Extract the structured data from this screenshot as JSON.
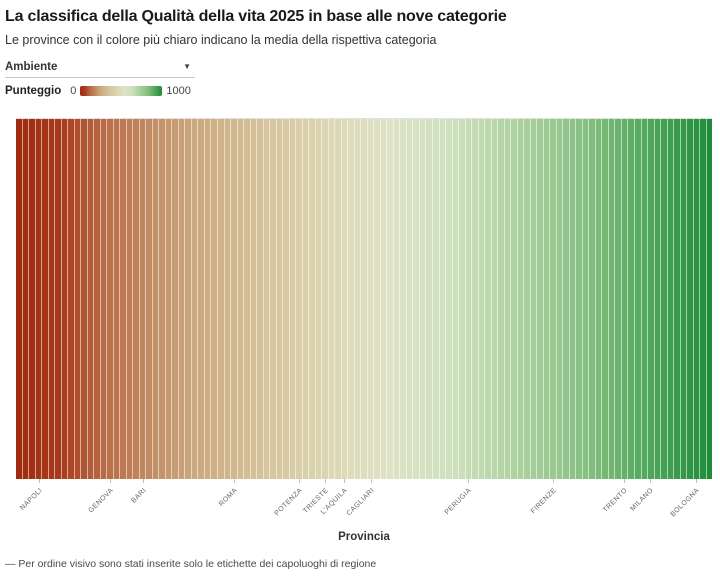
{
  "chart_data": {
    "type": "heatmap",
    "title": "La classifica della Qualità della vita 2025 in base alle nove categorie",
    "subtitle": "Le province con il colore più chiaro indicano la media della rispettiva categoria",
    "selected_category": "Ambiente",
    "xlabel": "Provincia",
    "n_provinces": 107,
    "color_scale": {
      "label": "Punteggio",
      "domain": [
        0,
        1000
      ],
      "min_label": "0",
      "max_label": "1000",
      "stops": [
        {
          "t": 0.0,
          "color": "#9e2b0e"
        },
        {
          "t": 0.06,
          "color": "#a83b1c"
        },
        {
          "t": 0.13,
          "color": "#b96f4a"
        },
        {
          "t": 0.25,
          "color": "#cba77c"
        },
        {
          "t": 0.36,
          "color": "#d6c59e"
        },
        {
          "t": 0.46,
          "color": "#dcd8b6"
        },
        {
          "t": 0.54,
          "color": "#dde3c6"
        },
        {
          "t": 0.63,
          "color": "#cde0bd"
        },
        {
          "t": 0.72,
          "color": "#aed2a0"
        },
        {
          "t": 0.82,
          "color": "#87c083"
        },
        {
          "t": 0.91,
          "color": "#52a85c"
        },
        {
          "t": 1.0,
          "color": "#1f8c3a"
        }
      ]
    },
    "x_tick_labels": [
      {
        "label": "NAPOLI",
        "position": 4
      },
      {
        "label": "GENOVA",
        "position": 15
      },
      {
        "label": "BARI",
        "position": 20
      },
      {
        "label": "ROMA",
        "position": 34
      },
      {
        "label": "POTENZA",
        "position": 44
      },
      {
        "label": "TRIESTE",
        "position": 48
      },
      {
        "label": "L'AQUILA",
        "position": 51
      },
      {
        "label": "CAGLIARI",
        "position": 55
      },
      {
        "label": "PERUGIA",
        "position": 70
      },
      {
        "label": "FIRENZE",
        "position": 83
      },
      {
        "label": "TRENTO",
        "position": 94
      },
      {
        "label": "MILANO",
        "position": 98
      },
      {
        "label": "BOLOGNA",
        "position": 105
      }
    ],
    "note": "— Per ordine visivo sono stati inserite solo le etichette dei capoluoghi di regione"
  }
}
